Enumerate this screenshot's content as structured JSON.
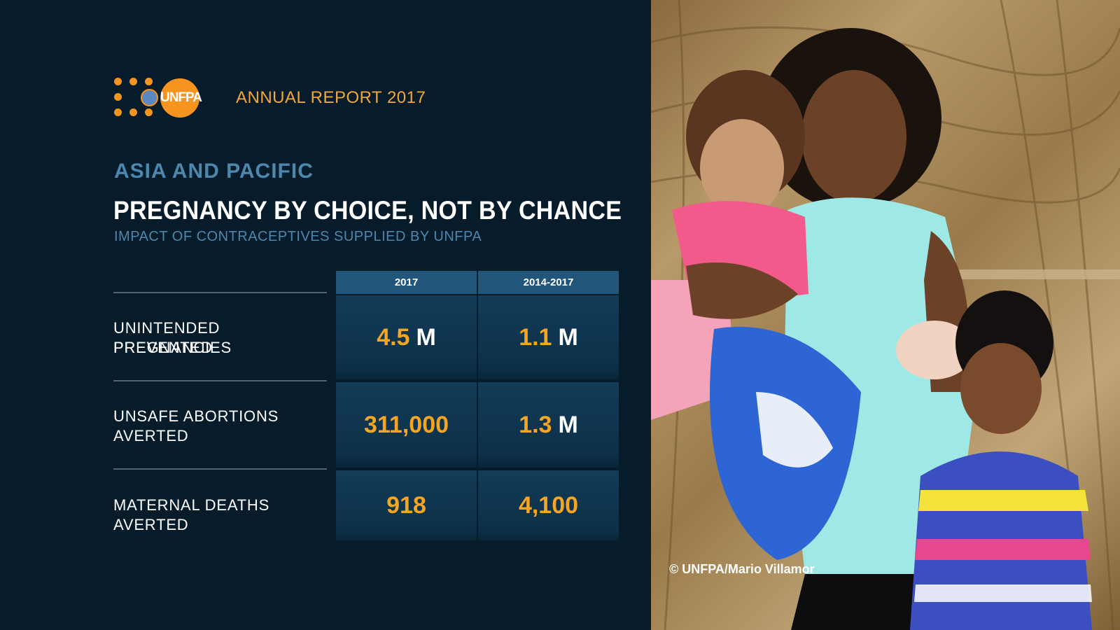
{
  "logo": {
    "text": "UNFPA",
    "brand_color": "#f7941d"
  },
  "header": {
    "report_title": "ANNUAL REPORT 2017"
  },
  "region": "ASIA AND PACIFIC",
  "headline": "PREGNANCY BY CHOICE, NOT BY CHANCE",
  "subhead": "IMPACT OF CONTRACEPTIVES SUPPLIED BY UNFPA",
  "table": {
    "columns": [
      "2017",
      "2014-2017"
    ],
    "rows": [
      {
        "label_lines": [
          "UNINTENDED PREGNANCIES",
          "PREVENTED"
        ],
        "values": [
          {
            "number": "4.5",
            "unit": "M"
          },
          {
            "number": "1.1",
            "unit": "M"
          }
        ]
      },
      {
        "label_lines": [
          "UNSAFE ABORTIONS",
          "AVERTED"
        ],
        "values": [
          {
            "number": "311,000",
            "unit": ""
          },
          {
            "number": "1.3",
            "unit": "M"
          }
        ]
      },
      {
        "label_lines": [
          "MATERNAL DEATHS AVERTED"
        ],
        "values": [
          {
            "number": "918",
            "unit": ""
          },
          {
            "number": "4,100",
            "unit": ""
          }
        ]
      }
    ]
  },
  "photo": {
    "credit": "© UNFPA/Mario Villamor"
  },
  "colors": {
    "background": "#061c2b",
    "accent_orange": "#f5a521",
    "accent_blue": "#4e87ad",
    "header_cell": "#21557a"
  }
}
